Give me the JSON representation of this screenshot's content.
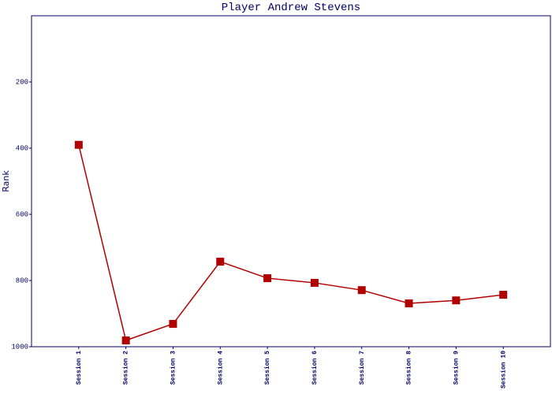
{
  "chart_data": {
    "type": "line",
    "title": "Player Andrew Stevens",
    "y_label": "Rank",
    "categories": [
      "Session 1",
      "Session 2",
      "Session 3",
      "Session 4",
      "Session 5",
      "Session 6",
      "Session 7",
      "Session 8",
      "Session 9",
      "Session 10"
    ],
    "values": [
      390,
      981,
      931,
      743,
      793,
      807,
      829,
      869,
      860,
      843
    ],
    "color": "#b00000",
    "ylim": [
      1000,
      0
    ],
    "yticks": [
      200,
      400,
      600,
      800,
      1000
    ],
    "grid": false
  }
}
